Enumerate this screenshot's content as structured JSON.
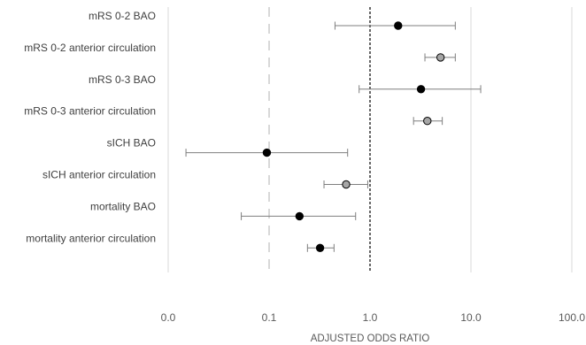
{
  "chart_data": {
    "type": "forest",
    "xscale": "log",
    "xlim": [
      0.01,
      100
    ],
    "xticks": [
      "0.0",
      "0.1",
      "1.0",
      "10.0",
      "100.0"
    ],
    "xlabel": "ADJUSTED ODDS RATIO",
    "reference_line": 1,
    "rows": [
      {
        "label": "mRS 0-2 BAO",
        "or": 1.9,
        "ci": [
          0.45,
          7.0
        ],
        "marker": "#000000"
      },
      {
        "label": "mRS 0-2 anterior circulation",
        "or": 5.0,
        "ci": [
          3.5,
          7.0
        ],
        "marker": "#a6a6a6"
      },
      {
        "label": "mRS 0-3 BAO",
        "or": 3.2,
        "ci": [
          0.78,
          12.5
        ],
        "marker": "#000000"
      },
      {
        "label": "mRS 0-3 anterior circulation",
        "or": 3.7,
        "ci": [
          2.7,
          5.2
        ],
        "marker": "#a6a6a6"
      },
      {
        "label": "sICH BAO",
        "or": 0.095,
        "ci": [
          0.015,
          0.6
        ],
        "marker": "#000000"
      },
      {
        "label": "sICH anterior circulation",
        "or": 0.58,
        "ci": [
          0.35,
          0.95
        ],
        "marker": "#a6a6a6"
      },
      {
        "label": "mortality BAO",
        "or": 0.2,
        "ci": [
          0.053,
          0.72
        ],
        "marker": "#000000"
      },
      {
        "label": "mortality anterior circulation",
        "or": 0.32,
        "ci": [
          0.24,
          0.44
        ],
        "marker": "#000000"
      }
    ]
  }
}
